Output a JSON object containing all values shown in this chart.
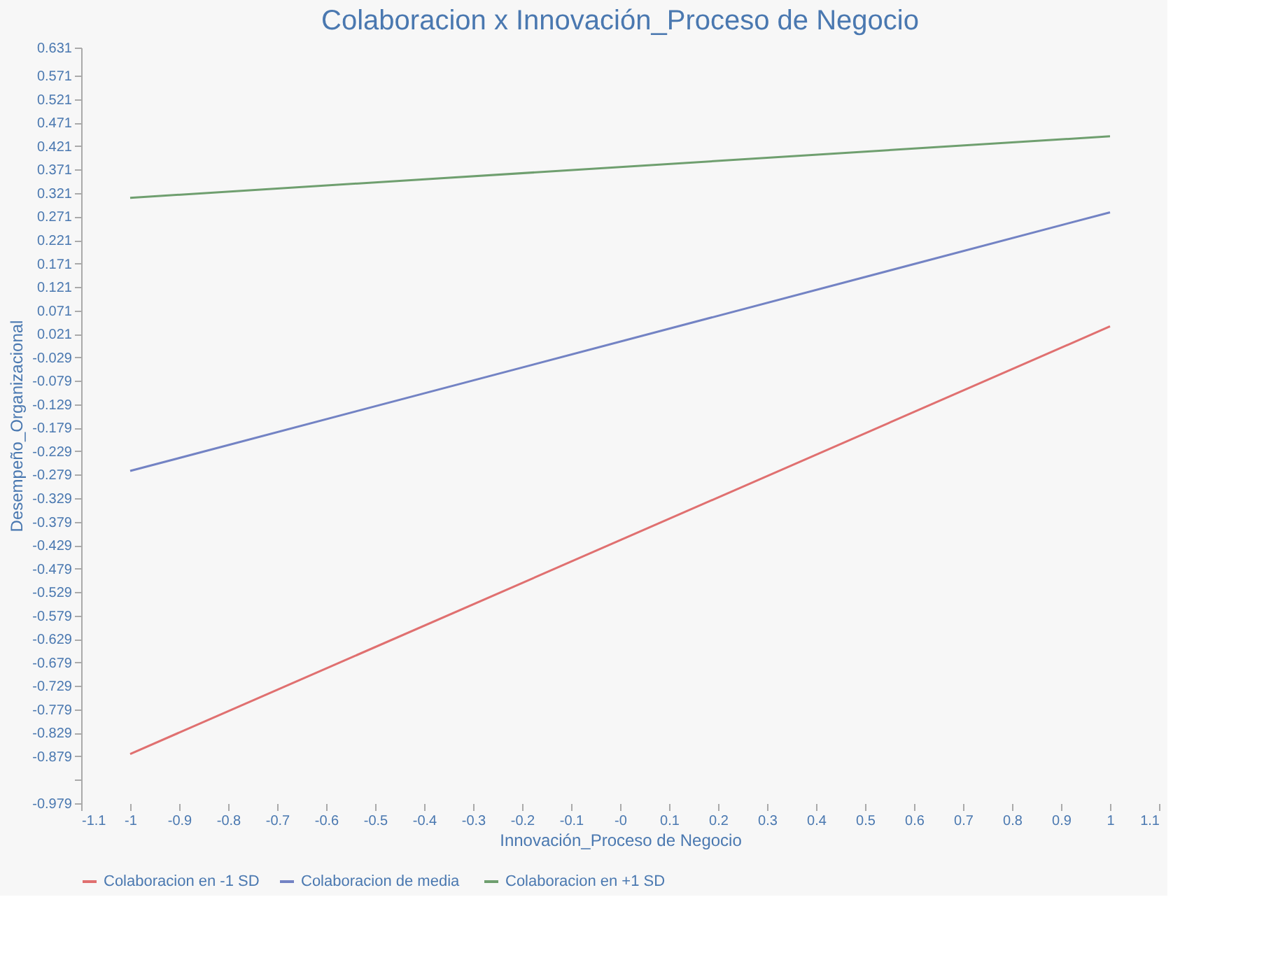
{
  "chart_data": {
    "type": "line",
    "title": "Colaboracion x Innovación_Proceso de Negocio",
    "xlabel": "Innovación_Proceso de Negocio",
    "ylabel": "Desempeño_Organizacional",
    "x": [
      -1,
      1
    ],
    "series": [
      {
        "name": "Colaboracion en -1 SD",
        "color": "#e07070",
        "values": [
          -0.874,
          0.037
        ]
      },
      {
        "name": "Colaboracion  de media",
        "color": "#7383c4",
        "values": [
          -0.271,
          0.28
        ]
      },
      {
        "name": "Colaboracion en +1 SD",
        "color": "#6f9f6f",
        "values": [
          0.311,
          0.442
        ]
      }
    ],
    "xlim": [
      -1.1,
      1.1
    ],
    "xticks": [
      -1.1,
      -1,
      -0.9,
      -0.8,
      -0.7,
      -0.6,
      -0.5,
      -0.4,
      -0.3,
      -0.2,
      -0.1,
      {
        "value": 0,
        "label": "-0"
      },
      0.1,
      0.2,
      0.3,
      0.4,
      0.5,
      0.6,
      0.7,
      0.8,
      0.9,
      1,
      1.1
    ],
    "ylim": [
      -0.979,
      0.631
    ],
    "yticks": [
      0.631,
      0.571,
      0.521,
      0.471,
      0.421,
      0.371,
      0.321,
      0.271,
      0.221,
      0.171,
      0.121,
      0.071,
      0.021,
      -0.029,
      -0.079,
      -0.129,
      -0.179,
      -0.229,
      -0.279,
      -0.329,
      -0.379,
      -0.429,
      -0.479,
      -0.529,
      -0.579,
      -0.629,
      -0.679,
      -0.729,
      -0.779,
      -0.829,
      -0.879,
      {
        "value": -0.929,
        "label": null
      },
      -0.979
    ],
    "grid": false,
    "legend": "bottom",
    "marker": "none",
    "line_style": "solid"
  }
}
